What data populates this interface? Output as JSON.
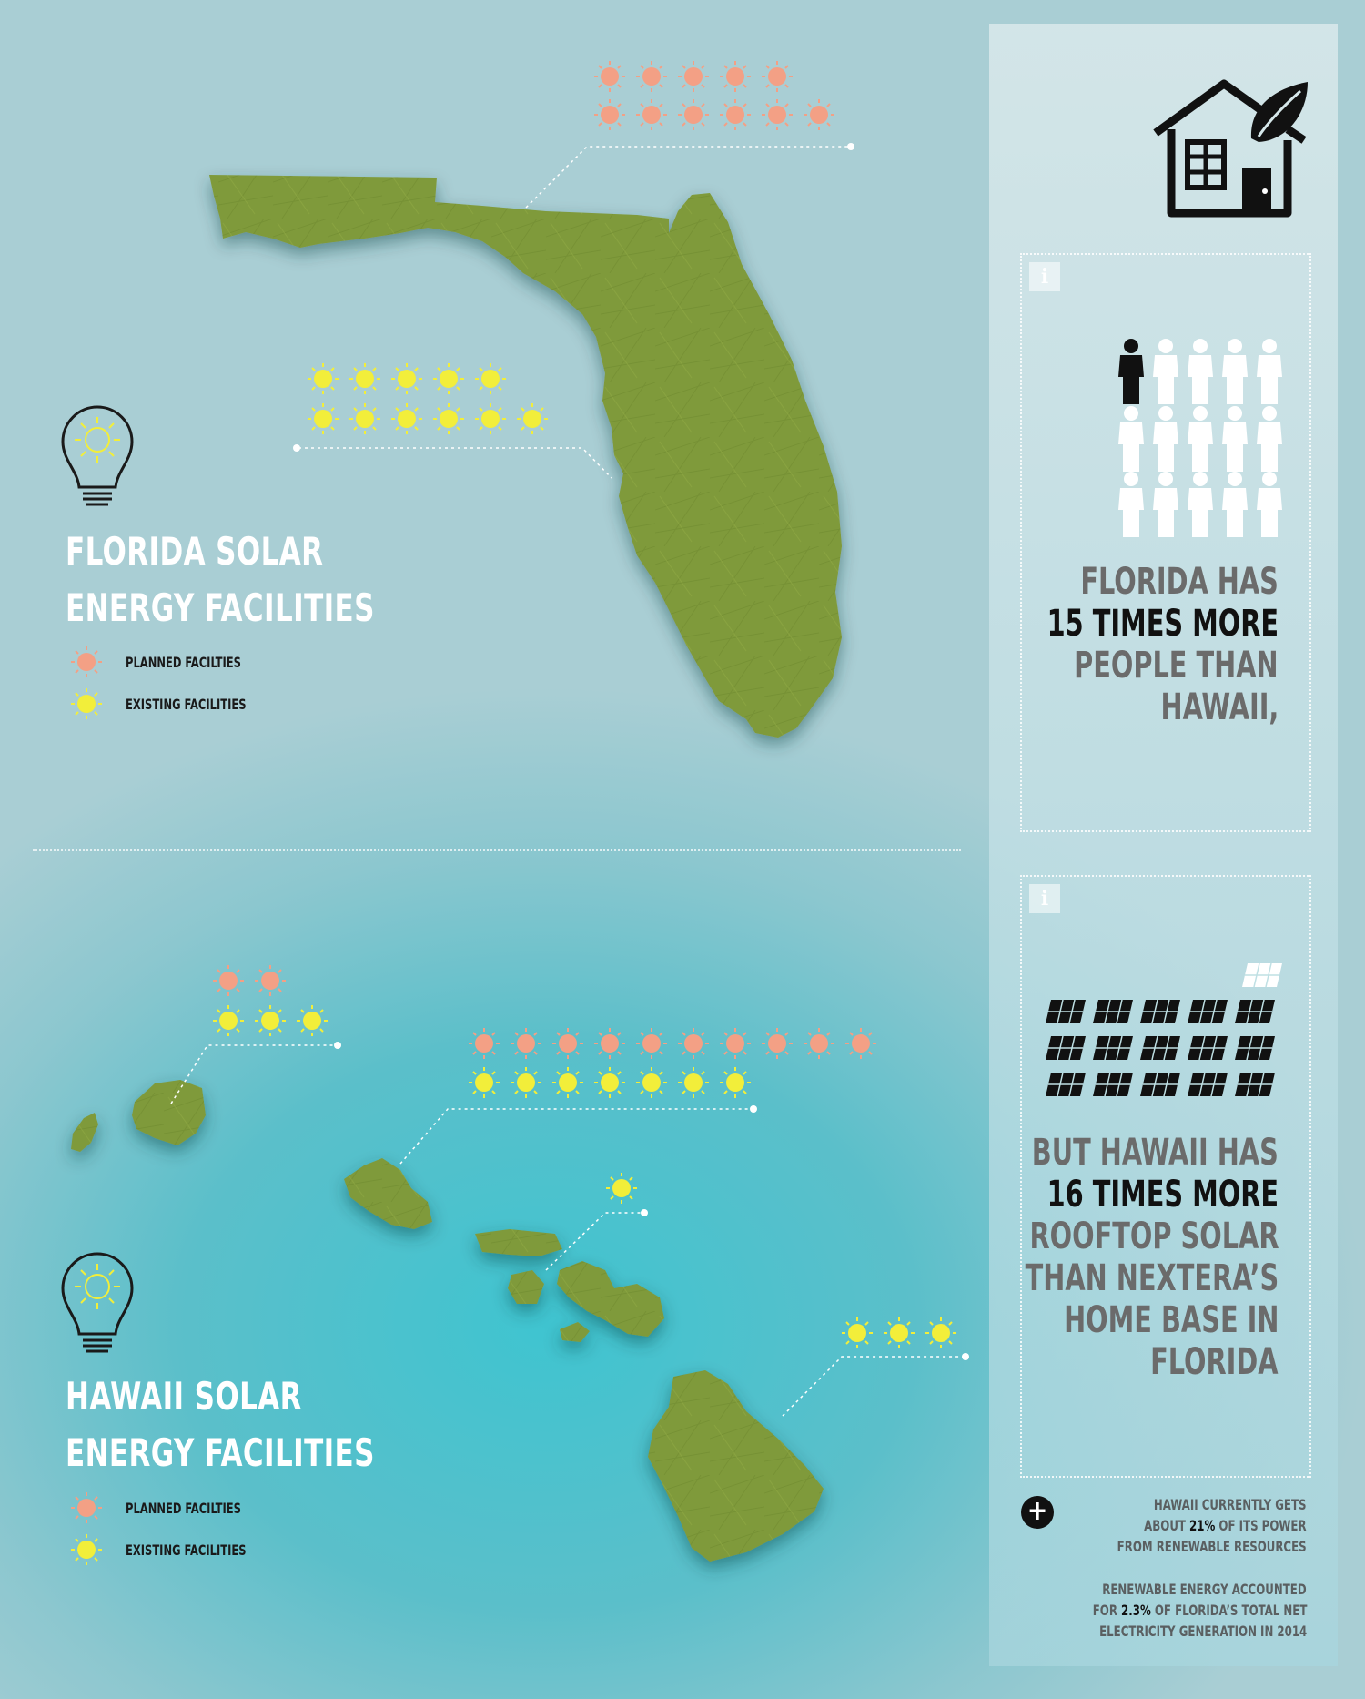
{
  "florida": {
    "title_line1": "FLORIDA SOLAR",
    "title_line2": "ENERGY FACILITIES",
    "legend_planned": "PLANNED FACILTIES",
    "legend_existing": "EXISTING FACILITIES",
    "planned_count": 11,
    "existing_count": 11
  },
  "hawaii": {
    "title_line1": "HAWAII SOLAR",
    "title_line2": "ENERGY FACILITIES",
    "legend_planned": "PLANNED FACILTIES",
    "legend_existing": "EXISTING FACILITIES",
    "kauai_planned": 2,
    "kauai_existing": 3,
    "oahu_planned": 10,
    "oahu_existing": 7,
    "maui_existing": 1,
    "big_island_existing": 3
  },
  "colors": {
    "planned": "#f3a085",
    "existing": "#f2ee3a",
    "land": "#7f9a3a"
  },
  "panel": {
    "icon_top": "house-leaf-icon",
    "population": {
      "line1": "FLORIDA HAS",
      "line2": "15 TIMES MORE",
      "line3": "PEOPLE THAN",
      "line4": "HAWAII,",
      "people_total": 15,
      "people_highlighted": 1
    },
    "solar": {
      "line1": "BUT HAWAII HAS",
      "line2": "16 TIMES MORE",
      "line3": "ROOFTOP SOLAR",
      "line4": "THAN NEXTERA’S",
      "line5": "HOME BASE IN",
      "line6": "FLORIDA",
      "panels_dark": 15,
      "panels_light": 1
    },
    "fact1": {
      "line1": "HAWAII CURRENTLY GETS",
      "line2_pre": "ABOUT ",
      "line2_hl": "21%",
      "line2_post": " OF ITS POWER",
      "line3": "FROM RENEWABLE RESOURCES"
    },
    "fact2": {
      "line1": "RENEWABLE ENERGY ACCOUNTED",
      "line2_pre": "FOR ",
      "line2_hl": "2.3%",
      "line2_post": " OF FLORIDA’S TOTAL NET",
      "line3": "ELECTRICITY GENERATION IN 2014"
    }
  }
}
